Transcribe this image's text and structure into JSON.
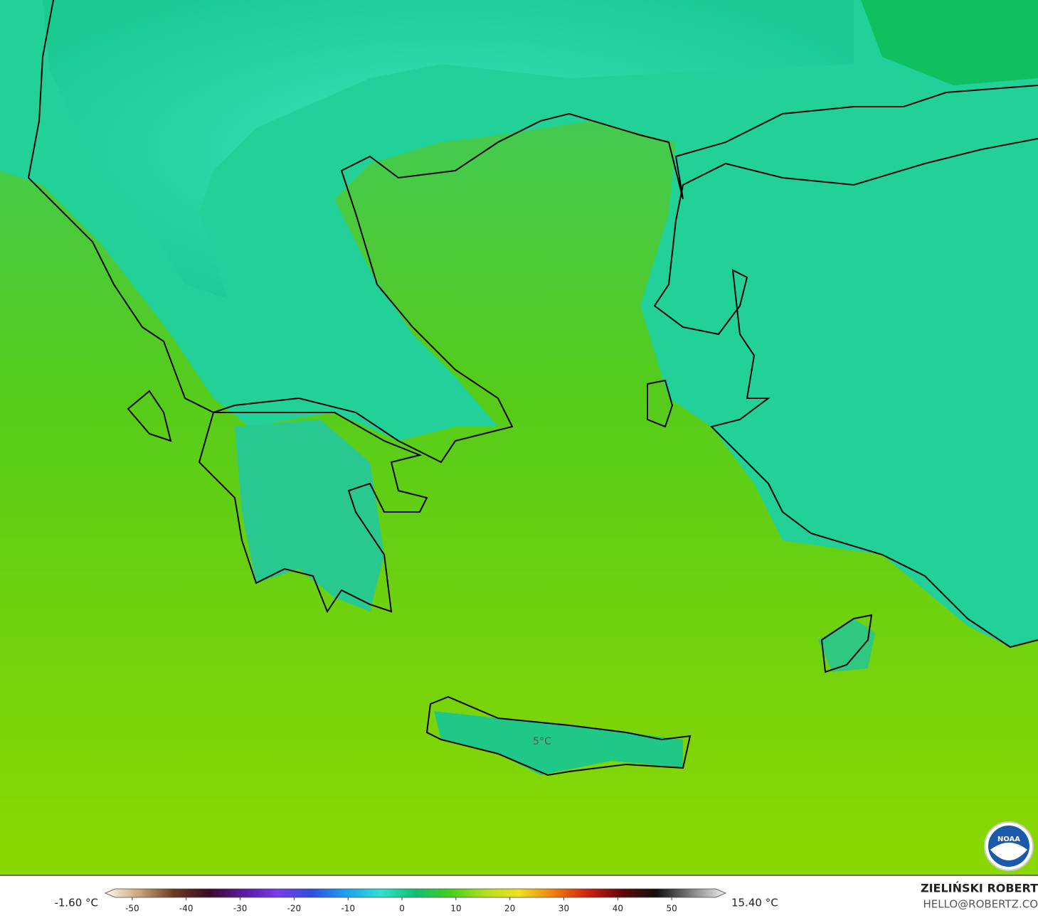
{
  "map": {
    "annotation": "5°C"
  },
  "colorbar": {
    "min_label": "-1.60 °C",
    "max_label": "15.40 °C",
    "range": [
      -55,
      60
    ],
    "ticks": [
      -50,
      -40,
      -30,
      -20,
      -10,
      0,
      10,
      20,
      30,
      40,
      50
    ],
    "colors": [
      "#fffaf0",
      "#c9a27a",
      "#6b3a1e",
      "#3a0a2a",
      "#5a1aa0",
      "#7a3ae8",
      "#3050e0",
      "#20a0f0",
      "#30e0d0",
      "#10c070",
      "#40d020",
      "#b0e020",
      "#f0e020",
      "#f08010",
      "#d02010",
      "#600808",
      "#101010",
      "#808080",
      "#f0f0f0"
    ]
  },
  "credit": {
    "author": "ZIELIŃSKI ROBERT",
    "email": "HELLO@ROBERTZ.CO",
    "logo": "NOAA"
  }
}
